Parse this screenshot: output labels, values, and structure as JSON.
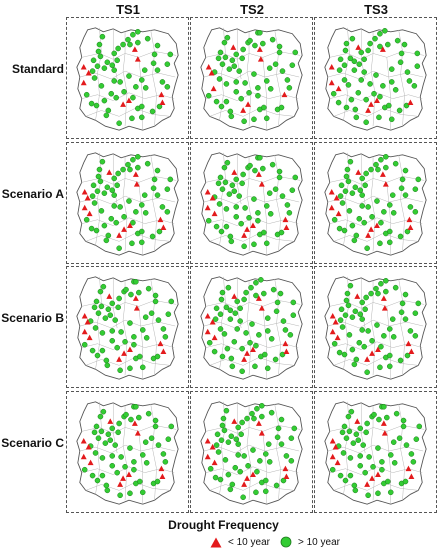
{
  "columns": [
    "TS1",
    "TS2",
    "TS3"
  ],
  "rows": [
    "Standard",
    "Scenario A",
    "Scenario B",
    "Scenario C"
  ],
  "legend": {
    "title": "Drought Frequency",
    "items": [
      {
        "symbol": "red-triangle",
        "label": "< 10 year",
        "color": "#e31a1c"
      },
      {
        "symbol": "green-circle",
        "label": "> 10 year",
        "color": "#33cc33"
      }
    ]
  },
  "colors": {
    "triangle": "#e31a1c",
    "circle": "#33cc33",
    "circle_stroke": "#1f7a1f",
    "outline": "#555555",
    "district": "#b5b5b5"
  }
}
